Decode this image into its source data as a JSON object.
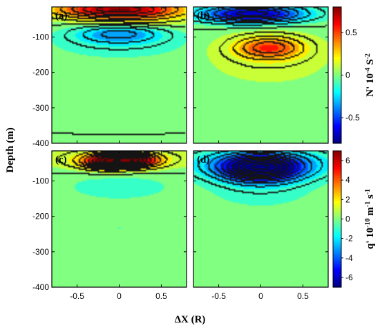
{
  "chart_data": {
    "type": "heatmap",
    "colormap": "jet",
    "xlabel": "ΔX (R)",
    "ylabel": "Depth (m)",
    "xlim": [
      -0.8,
      0.8
    ],
    "ylim": [
      -400,
      -15
    ],
    "xticks": [
      -0.5,
      0,
      0.5
    ],
    "yticks": [
      -100,
      -200,
      -300,
      -400
    ],
    "panels": [
      {
        "label": "(a)",
        "colorbar": "top",
        "features": [
          {
            "x": 0.0,
            "depth": -22,
            "sx": 0.55,
            "sz": 18,
            "value": 0.75
          },
          {
            "x": 0.15,
            "depth": -55,
            "sx": 0.5,
            "sz": 16,
            "value": 0.15
          },
          {
            "x": 0.0,
            "depth": -90,
            "sx": 0.38,
            "sz": 20,
            "value": -0.35
          },
          {
            "x": 0.0,
            "depth": -125,
            "sx": 0.6,
            "sz": 30,
            "value": -0.1
          },
          {
            "x": 0.0,
            "depth": -225,
            "sx": 0.08,
            "sz": 8,
            "value": -0.03
          }
        ]
      },
      {
        "label": "(b)",
        "colorbar": "top",
        "features": [
          {
            "x": -0.1,
            "depth": -35,
            "sx": 0.45,
            "sz": 18,
            "value": -0.75
          },
          {
            "x": 0.1,
            "depth": -130,
            "sx": 0.28,
            "sz": 22,
            "value": 0.45
          },
          {
            "x": 0.1,
            "depth": -160,
            "sx": 0.55,
            "sz": 55,
            "value": 0.12
          }
        ]
      },
      {
        "label": "(c)",
        "colorbar": "bottom",
        "features": [
          {
            "x": -0.12,
            "depth": -45,
            "sx": 0.2,
            "sz": 15,
            "value": 7.0
          },
          {
            "x": 0.22,
            "depth": -42,
            "sx": 0.18,
            "sz": 14,
            "value": 5.0
          },
          {
            "x": 0.0,
            "depth": -40,
            "sx": 0.6,
            "sz": 22,
            "value": 2.0
          },
          {
            "x": 0.0,
            "depth": -115,
            "sx": 0.55,
            "sz": 35,
            "value": -0.8
          },
          {
            "x": 0.0,
            "depth": -232,
            "sx": 0.1,
            "sz": 9,
            "value": -0.5
          }
        ]
      },
      {
        "label": "(d)",
        "colorbar": "bottom",
        "features": [
          {
            "x": 0.0,
            "depth": -65,
            "sx": 0.32,
            "sz": 26,
            "value": -7.5
          },
          {
            "x": 0.0,
            "depth": -50,
            "sx": 0.62,
            "sz": 30,
            "value": -3.0
          },
          {
            "x": 0.0,
            "depth": -130,
            "sx": 0.5,
            "sz": 40,
            "value": -0.8
          }
        ]
      }
    ],
    "colorbars": {
      "top": {
        "range": [
          -0.8,
          0.8
        ],
        "ticks": [
          0.5,
          0,
          -0.5
        ],
        "tick_labels": [
          "0.5",
          "0",
          "-0.5"
        ],
        "title": "N' 10^-4 S^-2"
      },
      "bottom": {
        "range": [
          -7,
          7
        ],
        "ticks": [
          6,
          4,
          2,
          0,
          -2,
          -4,
          -6
        ],
        "tick_labels": [
          "6",
          "4",
          "2",
          "0",
          "-2",
          "-4",
          "-6"
        ],
        "title": "q' 10^-10 m^-1 s^-1"
      }
    },
    "tick_labels": {
      "x": [
        "-0.5",
        "0",
        "0.5"
      ],
      "y": [
        "-100",
        "-200",
        "-300",
        "-400"
      ]
    },
    "background_value": "near zero (green)"
  }
}
